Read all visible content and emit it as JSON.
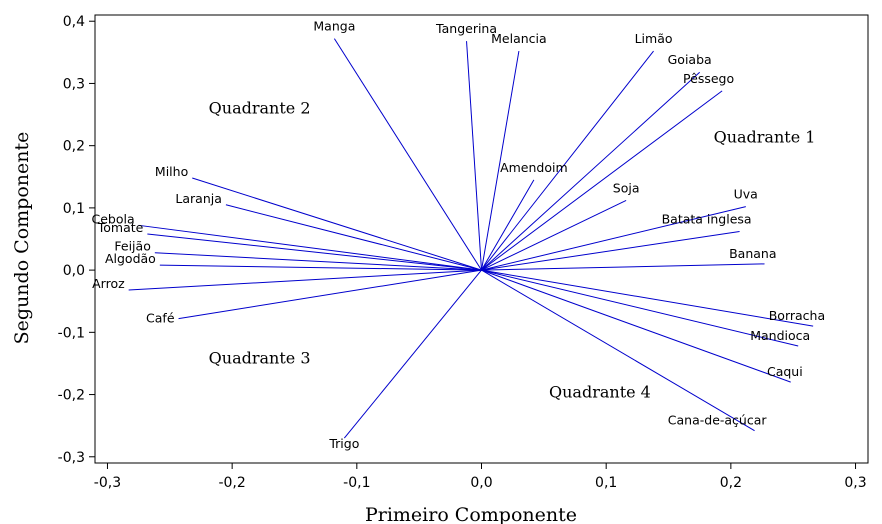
{
  "chart_data": {
    "type": "biplot",
    "xlabel": "Primeiro Componente",
    "ylabel": "Segundo Componente",
    "xlim": [
      -0.31,
      0.31
    ],
    "ylim": [
      -0.31,
      0.41
    ],
    "x_ticks": [
      -0.3,
      -0.2,
      -0.1,
      0.0,
      0.1,
      0.2,
      0.3
    ],
    "y_ticks": [
      -0.3,
      -0.2,
      -0.1,
      0.0,
      0.1,
      0.2,
      0.3,
      0.4
    ],
    "x_tick_labels": [
      "-0,3",
      "-0,2",
      "-0,1",
      "0,0",
      "0,1",
      "0,2",
      "0,3"
    ],
    "y_tick_labels": [
      "-0,3",
      "-0,2",
      "-0,1",
      "0,0",
      "0,1",
      "0,2",
      "0,3",
      "0,4"
    ],
    "grid": false,
    "line_color": "#0000cc",
    "vectors": [
      {
        "label": "Manga",
        "x": -0.118,
        "y": 0.372
      },
      {
        "label": "Tangerina",
        "x": -0.012,
        "y": 0.368
      },
      {
        "label": "Melancia",
        "x": 0.03,
        "y": 0.352
      },
      {
        "label": "Limão",
        "x": 0.138,
        "y": 0.352
      },
      {
        "label": "Goiaba",
        "x": 0.175,
        "y": 0.318
      },
      {
        "label": "Pêssego",
        "x": 0.193,
        "y": 0.288
      },
      {
        "label": "Amendoim",
        "x": 0.042,
        "y": 0.145
      },
      {
        "label": "Soja",
        "x": 0.116,
        "y": 0.112
      },
      {
        "label": "Uva",
        "x": 0.212,
        "y": 0.102
      },
      {
        "label": "Batata inglesa",
        "x": 0.207,
        "y": 0.062
      },
      {
        "label": "Banana",
        "x": 0.227,
        "y": 0.01
      },
      {
        "label": "Borracha",
        "x": 0.266,
        "y": -0.09
      },
      {
        "label": "Mandioca",
        "x": 0.254,
        "y": -0.122
      },
      {
        "label": "Caqui",
        "x": 0.248,
        "y": -0.18
      },
      {
        "label": "Cana-de-açúcar",
        "x": 0.219,
        "y": -0.258
      },
      {
        "label": "Trigo",
        "x": -0.11,
        "y": -0.27
      },
      {
        "label": "Café",
        "x": -0.243,
        "y": -0.078
      },
      {
        "label": "Arroz",
        "x": -0.283,
        "y": -0.032
      },
      {
        "label": "Algodão",
        "x": -0.258,
        "y": 0.008
      },
      {
        "label": "Feijão",
        "x": -0.262,
        "y": 0.028
      },
      {
        "label": "Tomate",
        "x": -0.268,
        "y": 0.058
      },
      {
        "label": "Cebola",
        "x": -0.275,
        "y": 0.072
      },
      {
        "label": "Laranja",
        "x": -0.205,
        "y": 0.105
      },
      {
        "label": "Milho",
        "x": -0.232,
        "y": 0.148
      }
    ],
    "quadrants": [
      {
        "label": "Quadrante 1",
        "x": 0.227,
        "y": 0.205
      },
      {
        "label": "Quadrante 2",
        "x": -0.178,
        "y": 0.252
      },
      {
        "label": "Quadrante 3",
        "x": -0.178,
        "y": -0.15
      },
      {
        "label": "Quadrante 4",
        "x": 0.095,
        "y": -0.205
      }
    ]
  }
}
